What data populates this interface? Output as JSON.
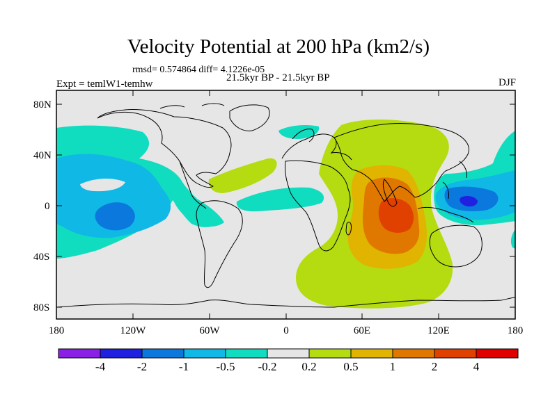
{
  "title": "Velocity Potential at 200 hPa (km2/s)",
  "stats": "rmsd= 0.574864 diff= 4.1226e-05",
  "experiment": "Expt = temlW1-temhw",
  "period": "21.5kyr BP - 21.5kyr BP",
  "season": "DJF",
  "axes": {
    "y_ticks": [
      "80N",
      "40N",
      "0",
      "40S",
      "80S"
    ],
    "x_ticks": [
      "180",
      "120W",
      "60W",
      "0",
      "60E",
      "120E",
      "180"
    ]
  },
  "map": {
    "projection": "cylindrical equidistant",
    "lon_range": [
      -180,
      180
    ],
    "lat_range": [
      -90,
      90
    ],
    "background_color": "#e6e6e6",
    "coastline_color": "#000000"
  },
  "colorbar": {
    "tick_labels": [
      "-4",
      "-2",
      "-1",
      "-0.5",
      "-0.2",
      "0.2",
      "0.5",
      "1",
      "2",
      "4"
    ],
    "colors": [
      "#8a20e6",
      "#2020e0",
      "#0a78dc",
      "#10b8e6",
      "#10dcc0",
      "#e6e6e6",
      "#b4dc10",
      "#e0b400",
      "#e07800",
      "#e04000",
      "#e00000"
    ]
  },
  "chart_data": {
    "type": "heatmap",
    "title": "Velocity Potential at 200 hPa (km2/s)",
    "xlabel": "",
    "ylabel": "",
    "xlim": [
      -180,
      180
    ],
    "ylim": [
      -90,
      90
    ],
    "contour_levels": [
      -4,
      -2,
      -1,
      -0.5,
      -0.2,
      0.2,
      0.5,
      1,
      2,
      4
    ],
    "regions": [
      {
        "level": "0.2 to 0.5",
        "color": "#b4dc10",
        "description": "Africa / Indian Ocean / Southern Ocean high",
        "lon_center": 60,
        "lat_center": -10
      },
      {
        "level": "0.5 to 1",
        "color": "#e0b400",
        "lon_center": 75,
        "lat_center": 0
      },
      {
        "level": "1 to 2",
        "color": "#e07800",
        "lon_center": 80,
        "lat_center": -5
      },
      {
        "level": "2 to 4",
        "color": "#e04000",
        "lon_center": 85,
        "lat_center": -5
      },
      {
        "level": "0.2 to 0.5",
        "color": "#b4dc10",
        "lon_center": -20,
        "lat_center": 25
      },
      {
        "level": "-0.5 to -0.2",
        "color": "#10dcc0",
        "lon_center": -140,
        "lat_center": 20
      },
      {
        "level": "-1 to -0.5",
        "color": "#10b8e6",
        "lon_center": -140,
        "lat_center": 0
      },
      {
        "level": "-2 to -1",
        "color": "#0a78dc",
        "lon_center": -130,
        "lat_center": -10
      },
      {
        "level": "-0.5 to -0.2",
        "color": "#10dcc0",
        "lon_center": 150,
        "lat_center": 10
      },
      {
        "level": "-1 to -0.5",
        "color": "#10b8e6",
        "lon_center": 150,
        "lat_center": 5
      },
      {
        "level": "-2 to -1",
        "color": "#0a78dc",
        "lon_center": 150,
        "lat_center": 5
      },
      {
        "level": "-4 to -2",
        "color": "#2020e0",
        "lon_center": 150,
        "lat_center": 5
      }
    ]
  }
}
